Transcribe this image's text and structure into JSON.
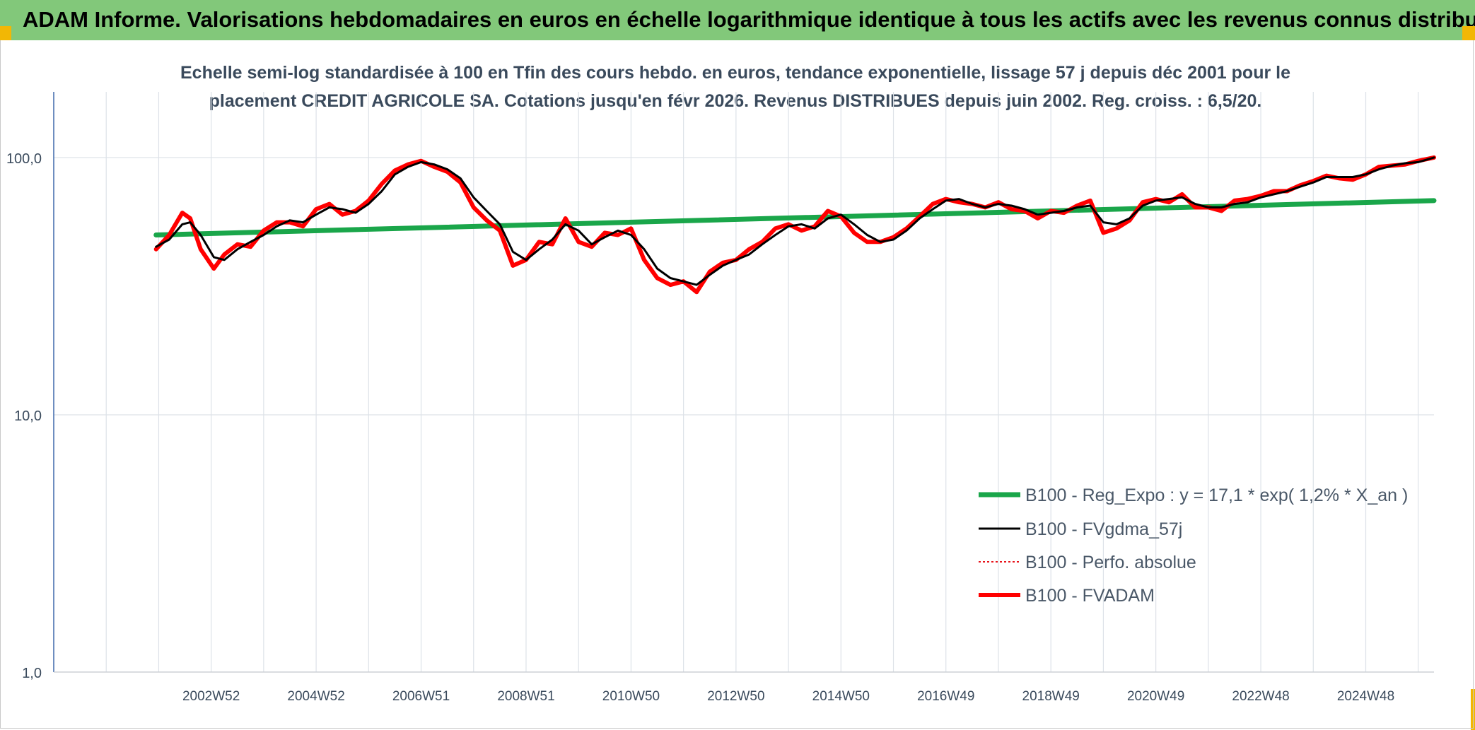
{
  "header": {
    "title": "ADAM Informe. Valorisations hebdomadaires en euros en échelle logarithmique identique à tous les actifs avec les revenus connus distribués"
  },
  "chart_title": {
    "line1": "Echelle semi-log standardisée à 100 en Tfin des cours hebdo. en euros, tendance exponentielle, lissage 57 j depuis déc 2001 pour le",
    "line2": "placement CREDIT AGRICOLE SA. Cotations jusqu'en févr 2026. Revenus DISTRIBUES depuis juin 2002. Reg. croiss. : 6,5/20."
  },
  "colors": {
    "banner": "#82c87a",
    "corner": "#f2b705",
    "regression": "#1aa64a",
    "smoothed": "#000000",
    "perfo": "#e8141b",
    "fvadam": "#ff0000",
    "grid": "#dde2e8",
    "axis": "#4a72b0",
    "tick_text": "#3a4a5c"
  },
  "chart_data": {
    "type": "line",
    "yscale": "log",
    "ylim": [
      1,
      180
    ],
    "yticks": [
      1,
      10,
      100
    ],
    "ytick_labels": [
      "1,0",
      "10,0",
      "100,0"
    ],
    "xlim": [
      2000.0,
      2026.3
    ],
    "xtick_labels": [
      "2002W52",
      "2004W52",
      "2006W51",
      "2008W51",
      "2010W50",
      "2012W50",
      "2014W50",
      "2016W49",
      "2018W49",
      "2020W49",
      "2022W48",
      "2024W48"
    ],
    "xtick_values": [
      2003,
      2005,
      2007,
      2009,
      2011,
      2013,
      2015,
      2017,
      2019,
      2021,
      2023,
      2025
    ],
    "legend_position": "lower-right",
    "series": [
      {
        "name": "B100 - Reg_Expo : y = 17,1 * exp( 1,2% *  X_an )",
        "style": "solid-thick",
        "x": [
          2001.95,
          2026.3
        ],
        "y": [
          50.0,
          68.0
        ]
      },
      {
        "name": "B100 - FVgdma_57j",
        "style": "solid-thin",
        "x": [
          2001.95,
          2002.2,
          2002.45,
          2002.6,
          2002.8,
          2003.05,
          2003.25,
          2003.5,
          2003.75,
          2004.0,
          2004.25,
          2004.5,
          2004.75,
          2005.0,
          2005.25,
          2005.5,
          2005.75,
          2006.0,
          2006.25,
          2006.5,
          2006.75,
          2007.0,
          2007.25,
          2007.5,
          2007.75,
          2008.0,
          2008.25,
          2008.5,
          2008.75,
          2009.0,
          2009.25,
          2009.5,
          2009.75,
          2010.0,
          2010.25,
          2010.5,
          2010.75,
          2011.0,
          2011.25,
          2011.5,
          2011.75,
          2012.0,
          2012.25,
          2012.5,
          2012.75,
          2013.0,
          2013.25,
          2013.5,
          2013.75,
          2014.0,
          2014.25,
          2014.5,
          2014.75,
          2015.0,
          2015.25,
          2015.5,
          2015.75,
          2016.0,
          2016.25,
          2016.5,
          2016.75,
          2017.0,
          2017.25,
          2017.5,
          2017.75,
          2018.0,
          2018.25,
          2018.5,
          2018.75,
          2019.0,
          2019.25,
          2019.5,
          2019.75,
          2020.0,
          2020.25,
          2020.5,
          2020.75,
          2021.0,
          2021.25,
          2021.5,
          2021.75,
          2022.0,
          2022.25,
          2022.5,
          2022.75,
          2023.0,
          2023.25,
          2023.5,
          2023.75,
          2024.0,
          2024.25,
          2024.5,
          2024.75,
          2025.0,
          2025.25,
          2025.5,
          2025.75,
          2026.0,
          2026.3
        ],
        "y": [
          45,
          48,
          55,
          56,
          50,
          41,
          40,
          44,
          47,
          50,
          54,
          57,
          56,
          60,
          64,
          63,
          61,
          66,
          74,
          86,
          92,
          96,
          94,
          90,
          83,
          70,
          62,
          55,
          43,
          40,
          44,
          48,
          55,
          52,
          46,
          49,
          52,
          50,
          44,
          37,
          34,
          33,
          32,
          35,
          38,
          40,
          42,
          46,
          50,
          54,
          55,
          53,
          58,
          60,
          55,
          50,
          47,
          48,
          52,
          58,
          63,
          68,
          69,
          66,
          64,
          66,
          65,
          63,
          60,
          61,
          62,
          64,
          65,
          56,
          55,
          58,
          65,
          68,
          69,
          70,
          66,
          64,
          64,
          66,
          67,
          70,
          72,
          74,
          77,
          80,
          84,
          84,
          84,
          86,
          90,
          93,
          95,
          96,
          100
        ]
      },
      {
        "name": "B100 - Perfo. absolue",
        "style": "dotted",
        "x": [
          2001.95,
          2026.3
        ],
        "y": [
          45,
          100
        ]
      },
      {
        "name": "B100 - FVADAM",
        "style": "solid-thick",
        "x": [
          2001.95,
          2002.2,
          2002.45,
          2002.6,
          2002.8,
          2003.05,
          2003.25,
          2003.5,
          2003.75,
          2004.0,
          2004.25,
          2004.5,
          2004.75,
          2005.0,
          2005.25,
          2005.5,
          2005.75,
          2006.0,
          2006.25,
          2006.5,
          2006.75,
          2007.0,
          2007.25,
          2007.5,
          2007.75,
          2008.0,
          2008.25,
          2008.5,
          2008.75,
          2009.0,
          2009.25,
          2009.5,
          2009.75,
          2010.0,
          2010.25,
          2010.5,
          2010.75,
          2011.0,
          2011.25,
          2011.5,
          2011.75,
          2012.0,
          2012.25,
          2012.5,
          2012.75,
          2013.0,
          2013.25,
          2013.5,
          2013.75,
          2014.0,
          2014.25,
          2014.5,
          2014.75,
          2015.0,
          2015.25,
          2015.5,
          2015.75,
          2016.0,
          2016.25,
          2016.5,
          2016.75,
          2017.0,
          2017.25,
          2017.5,
          2017.75,
          2018.0,
          2018.25,
          2018.5,
          2018.75,
          2019.0,
          2019.25,
          2019.5,
          2019.75,
          2020.0,
          2020.25,
          2020.5,
          2020.75,
          2021.0,
          2021.25,
          2021.5,
          2021.75,
          2022.0,
          2022.25,
          2022.5,
          2022.75,
          2023.0,
          2023.25,
          2023.5,
          2023.75,
          2024.0,
          2024.25,
          2024.5,
          2024.75,
          2025.0,
          2025.25,
          2025.5,
          2025.75,
          2026.0,
          2026.3
        ],
        "y": [
          44,
          50,
          61,
          58,
          44,
          37,
          42,
          46,
          45,
          52,
          56,
          56,
          54,
          63,
          66,
          60,
          62,
          68,
          79,
          89,
          94,
          97,
          92,
          88,
          80,
          64,
          57,
          52,
          38,
          40,
          47,
          46,
          58,
          47,
          45,
          51,
          50,
          53,
          40,
          34,
          32,
          33,
          30,
          36,
          39,
          40,
          44,
          47,
          53,
          55,
          52,
          54,
          62,
          59,
          51,
          47,
          47,
          49,
          53,
          59,
          66,
          69,
          67,
          66,
          64,
          67,
          63,
          62,
          58,
          62,
          61,
          65,
          68,
          51,
          53,
          57,
          67,
          69,
          67,
          72,
          64,
          64,
          62,
          68,
          69,
          71,
          74,
          74,
          78,
          81,
          85,
          83,
          82,
          86,
          92,
          93,
          94,
          97,
          100
        ]
      }
    ]
  }
}
